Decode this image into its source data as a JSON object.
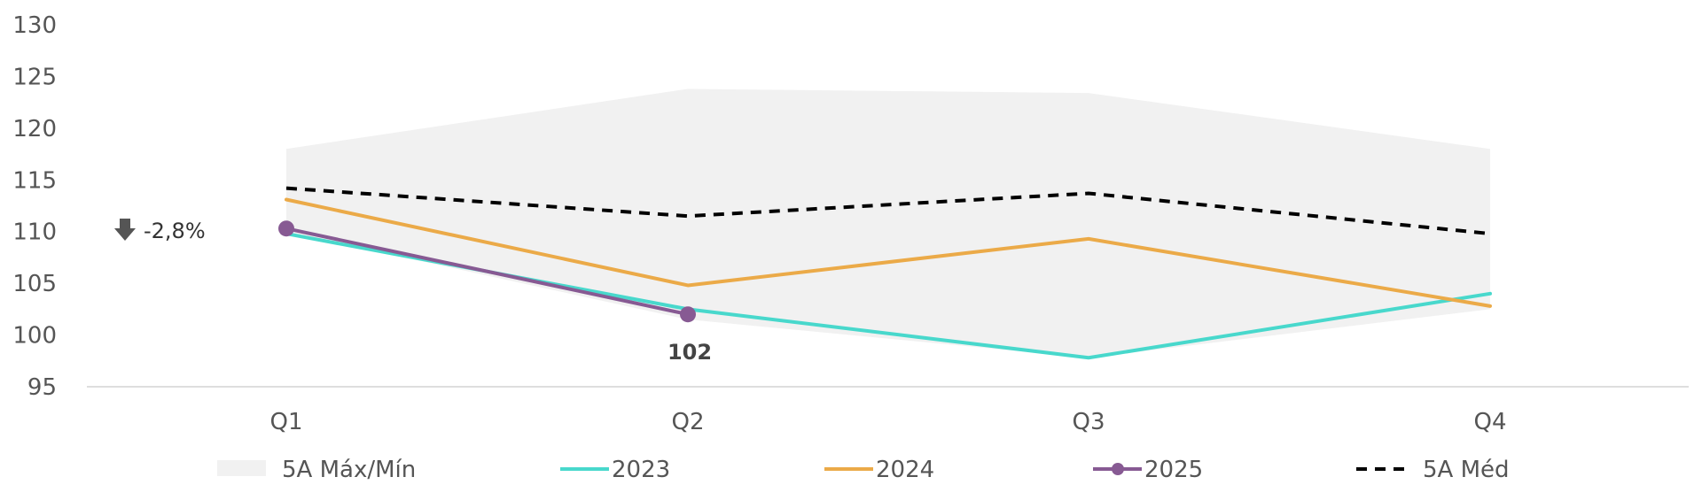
{
  "chart_data": {
    "type": "line",
    "categories": [
      "Q1",
      "Q2",
      "Q3",
      "Q4"
    ],
    "ylim": [
      95,
      130
    ],
    "yticks": [
      95,
      100,
      105,
      110,
      115,
      120,
      125,
      130
    ],
    "grid": false,
    "legend_placement": "bottom",
    "band": {
      "name": "5A Máx/Mín",
      "max": [
        118,
        123.8,
        123.4,
        118
      ],
      "min": [
        110,
        101.5,
        97.8,
        102.5
      ],
      "color": "#f1f1f1"
    },
    "series": [
      {
        "name": "2023",
        "values": [
          109.8,
          102.5,
          97.8,
          104
        ],
        "color": "#48d8cc",
        "style": "solid"
      },
      {
        "name": "2024",
        "values": [
          113.1,
          104.8,
          109.3,
          102.8
        ],
        "color": "#ebaa48",
        "style": "solid"
      },
      {
        "name": "2025",
        "values": [
          110.3,
          102,
          null,
          null
        ],
        "color": "#875a93",
        "style": "solid-markers"
      },
      {
        "name": "5A Méd",
        "values": [
          114.2,
          111.5,
          113.7,
          109.8
        ],
        "color": "#000000",
        "style": "dashed"
      }
    ],
    "annotations": {
      "change": "-2,8%",
      "last_value": "102"
    }
  }
}
